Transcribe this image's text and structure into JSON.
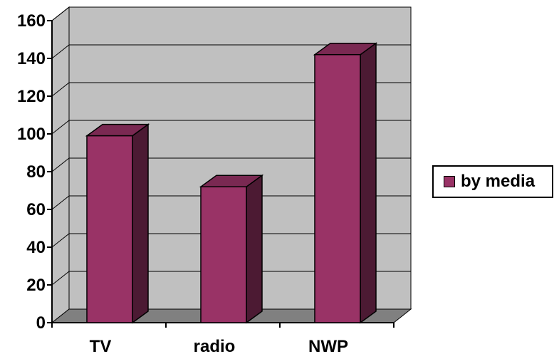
{
  "chart_data": {
    "type": "bar",
    "categories": [
      "TV",
      "radio",
      "NWP"
    ],
    "series": [
      {
        "name": "by media",
        "values": [
          99,
          72,
          142
        ],
        "color": "#993366"
      }
    ],
    "ylim": [
      0,
      160
    ],
    "yticks": [
      0,
      20,
      40,
      60,
      80,
      100,
      120,
      140,
      160
    ],
    "grid": true,
    "legend": "right",
    "style": "3d-column",
    "colors": {
      "wall": "#c0c0c0",
      "floor": "#808080",
      "bar_front": "#993366",
      "bar_top": "#7a2952",
      "bar_side": "#4c1a33"
    }
  }
}
